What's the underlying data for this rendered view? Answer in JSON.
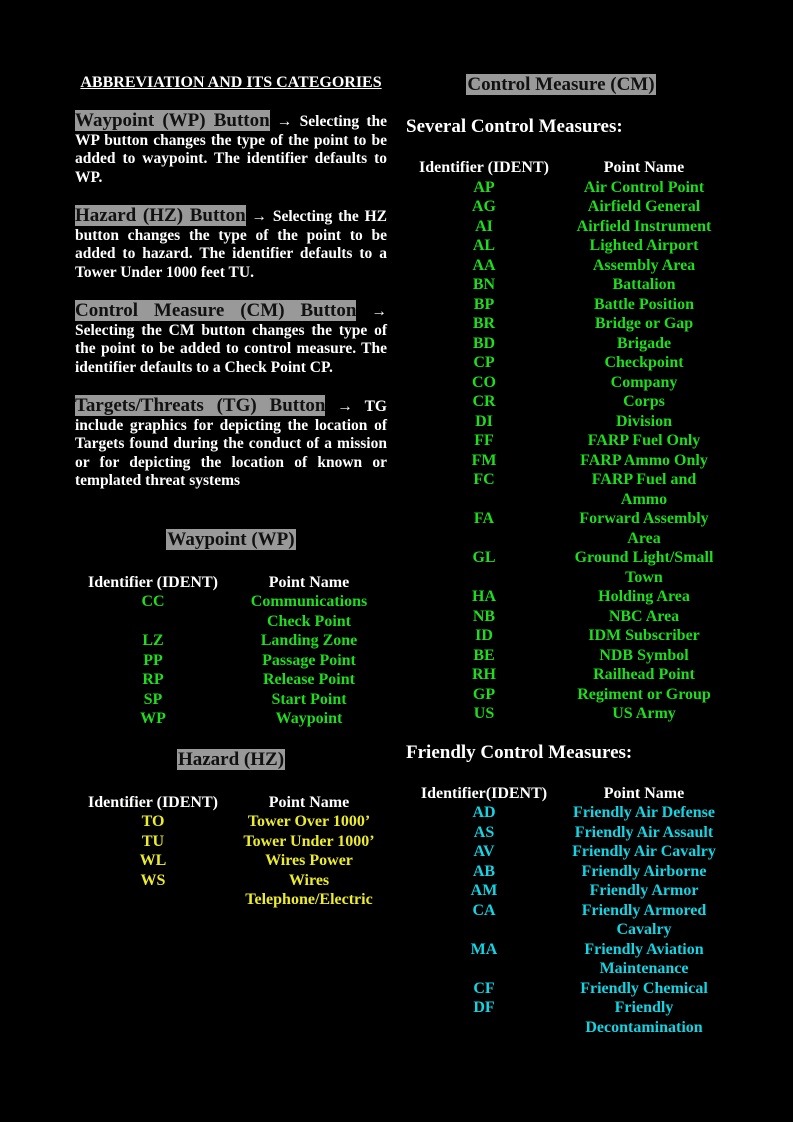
{
  "title": "ABBREVIATION AND ITS CATEGORIES",
  "paragraphs": [
    {
      "label": "Waypoint (WP) Button",
      "text": " → Selecting the WP button changes the type of the point to be added to waypoint. The identifier defaults to WP."
    },
    {
      "label": "Hazard (HZ) Button",
      "text": " → Selecting the HZ button changes the type of the point to be added to hazard. The identifier defaults to a Tower Under 1000 feet TU."
    },
    {
      "label": "Control Measure (CM) Button",
      "text": " → Selecting the CM button changes the type of the point to be added to control measure. The identifier defaults to a Check Point CP."
    },
    {
      "label": "Targets/Threats (TG) Button",
      "text": " → TG include graphics for depicting the location of Targets found during the conduct of a mission or for depicting the location of known or templated threat systems"
    }
  ],
  "waypoint": {
    "title": "Waypoint (WP)",
    "headers": [
      "Identifier (IDENT)",
      "Point Name"
    ],
    "color": "#1ddd1d",
    "rows": [
      [
        "CC",
        "Communications Check Point"
      ],
      [
        "LZ",
        "Landing Zone"
      ],
      [
        "PP",
        "Passage Point"
      ],
      [
        "RP",
        "Release Point"
      ],
      [
        "SP",
        "Start Point"
      ],
      [
        "WP",
        "Waypoint"
      ]
    ]
  },
  "hazard": {
    "title": "Hazard (HZ)",
    "headers": [
      "Identifier (IDENT)",
      "Point Name"
    ],
    "color": "#ecec2a",
    "rows": [
      [
        "TO",
        "Tower Over 1000’"
      ],
      [
        "TU",
        "Tower Under 1000’"
      ],
      [
        "WL",
        "Wires Power"
      ],
      [
        "WS",
        "Wires Telephone/Electric"
      ]
    ]
  },
  "control": {
    "title": "Control Measure (CM)",
    "subtitle": "Several Control Measures:",
    "headers": [
      "Identifier (IDENT)",
      "Point Name"
    ],
    "color": "#1ddd1d",
    "rows": [
      [
        "AP",
        "Air Control Point"
      ],
      [
        "AG",
        "Airfield General"
      ],
      [
        "AI",
        "Airfield Instrument"
      ],
      [
        "AL",
        "Lighted Airport"
      ],
      [
        "AA",
        "Assembly Area"
      ],
      [
        "BN",
        "Battalion"
      ],
      [
        "BP",
        "Battle Position"
      ],
      [
        "BR",
        "Bridge or Gap"
      ],
      [
        "BD",
        "Brigade"
      ],
      [
        "CP",
        "Checkpoint"
      ],
      [
        "CO",
        "Company"
      ],
      [
        "CR",
        "Corps"
      ],
      [
        "DI",
        "Division"
      ],
      [
        "FF",
        "FARP Fuel Only"
      ],
      [
        "FM",
        "FARP Ammo Only"
      ],
      [
        "FC",
        "FARP Fuel and Ammo"
      ],
      [
        "FA",
        "Forward Assembly Area"
      ],
      [
        "GL",
        "Ground Light/Small Town"
      ],
      [
        "HA",
        "Holding Area"
      ],
      [
        "NB",
        "NBC Area"
      ],
      [
        "ID",
        "IDM Subscriber"
      ],
      [
        "BE",
        "NDB Symbol"
      ],
      [
        "RH",
        "Railhead Point"
      ],
      [
        "GP",
        "Regiment or Group"
      ],
      [
        "US",
        "US Army"
      ]
    ]
  },
  "friendly": {
    "subtitle": "Friendly Control Measures:",
    "headers": [
      "Identifier(IDENT)",
      "Point Name"
    ],
    "color": "#14d4e4",
    "rows": [
      [
        "AD",
        "Friendly Air Defense"
      ],
      [
        "AS",
        "Friendly Air Assault"
      ],
      [
        "AV",
        "Friendly Air Cavalry"
      ],
      [
        "AB",
        "Friendly Airborne"
      ],
      [
        "AM",
        "Friendly Armor"
      ],
      [
        "CA",
        "Friendly Armored Cavalry"
      ],
      [
        "MA",
        "Friendly Aviation Maintenance"
      ],
      [
        "CF",
        "Friendly Chemical"
      ],
      [
        "DF",
        "Friendly Decontamination"
      ]
    ]
  }
}
